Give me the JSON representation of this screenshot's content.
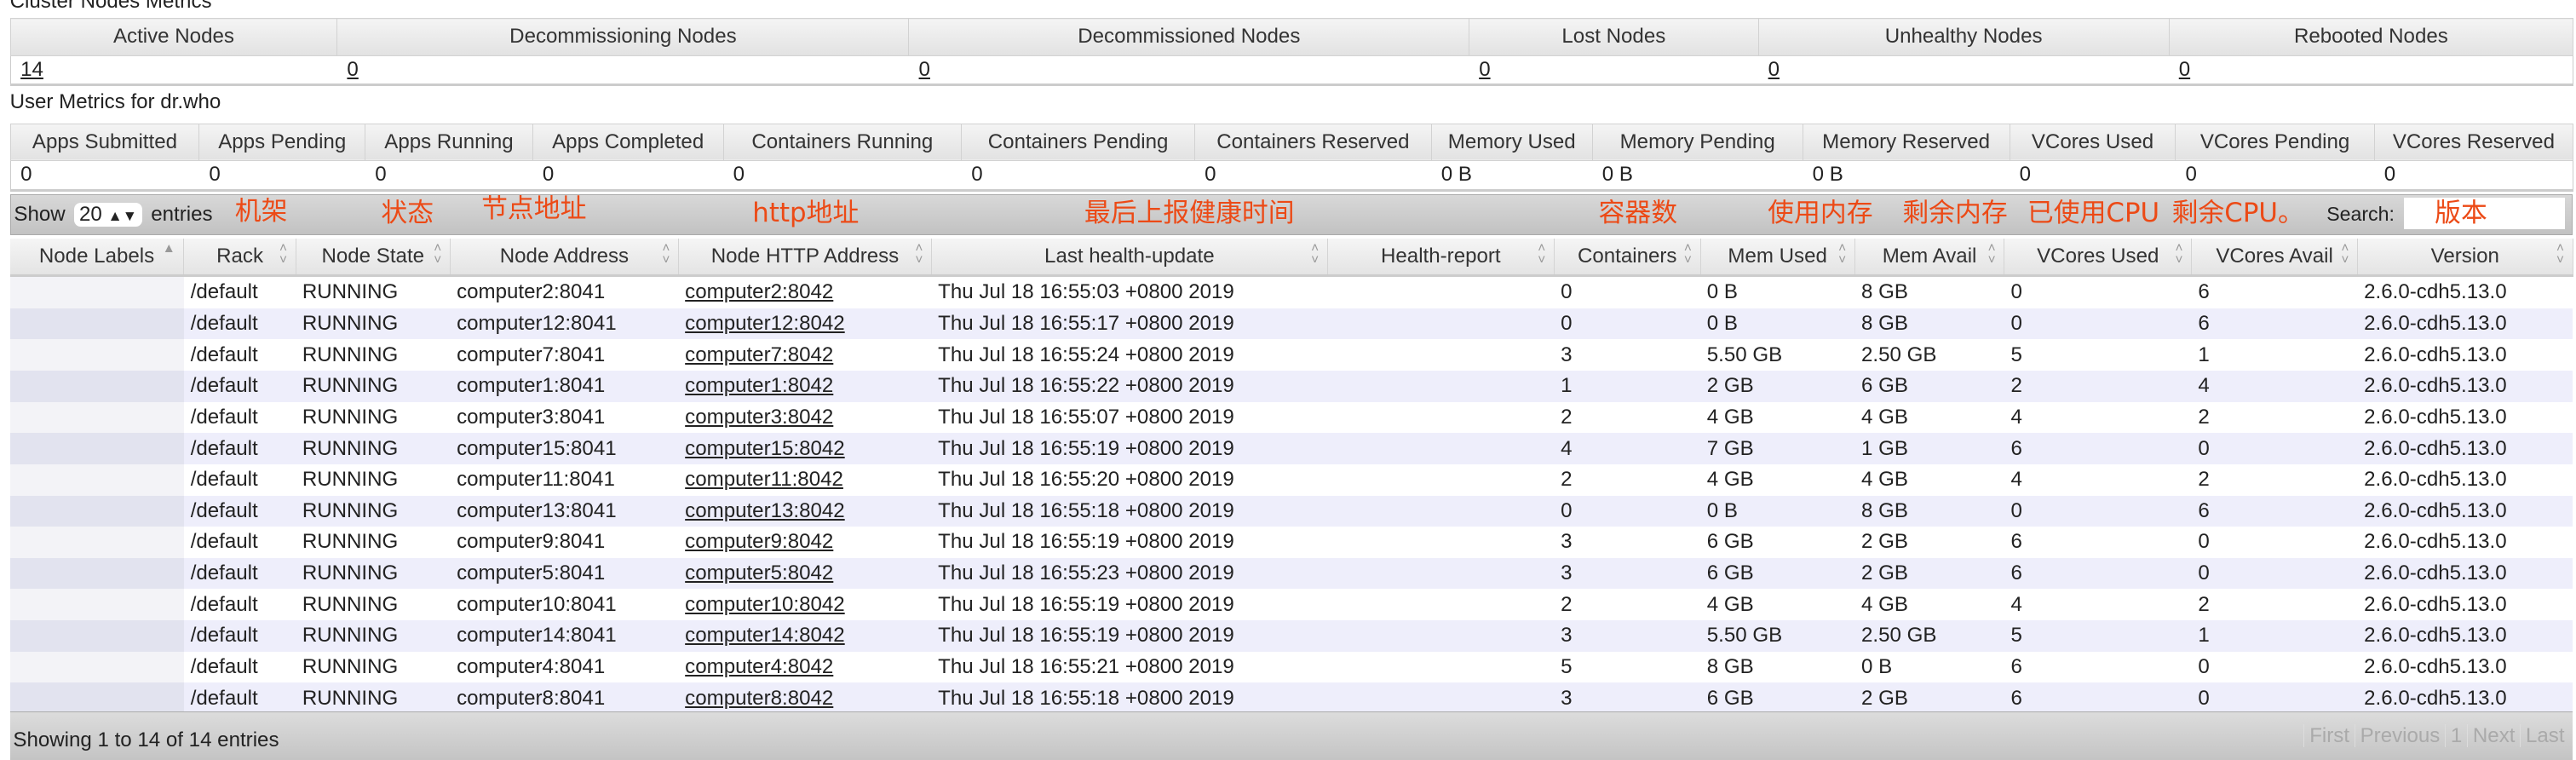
{
  "cluster": {
    "title": "Cluster Nodes Metrics",
    "headers": [
      "Active Nodes",
      "Decommissioning Nodes",
      "Decommissioned Nodes",
      "Lost Nodes",
      "Unhealthy Nodes",
      "Rebooted Nodes"
    ],
    "values": [
      "14",
      "0",
      "0",
      "0",
      "0",
      "0"
    ]
  },
  "user": {
    "title": "User Metrics for dr.who",
    "headers": [
      "Apps Submitted",
      "Apps Pending",
      "Apps Running",
      "Apps Completed",
      "Containers Running",
      "Containers Pending",
      "Containers Reserved",
      "Memory Used",
      "Memory Pending",
      "Memory Reserved",
      "VCores Used",
      "VCores Pending",
      "VCores Reserved"
    ],
    "values": [
      "0",
      "0",
      "0",
      "0",
      "0",
      "0",
      "0",
      "0 B",
      "0 B",
      "0 B",
      "0",
      "0",
      "0"
    ]
  },
  "controls": {
    "show_label": "Show",
    "entries_value": "20",
    "entries_label": "entries",
    "search_label": "Search:",
    "search_value": ""
  },
  "annotations": [
    "机架",
    "状态",
    "节点地址",
    "http地址",
    "最后上报健康时间",
    "容器数",
    "使用内存",
    "剩余内存",
    "已使用CPU",
    "剩余CPU。",
    "版本"
  ],
  "annotation_color": "#ec4a16",
  "nodes": {
    "headers": [
      "Node Labels",
      "Rack",
      "Node State",
      "Node Address",
      "Node HTTP Address",
      "Last health-update",
      "Health-report",
      "Containers",
      "Mem Used",
      "Mem Avail",
      "VCores Used",
      "VCores Avail",
      "Version"
    ],
    "sorted_column": "Node Labels",
    "rows": [
      [
        "",
        "/default",
        "RUNNING",
        "computer2:8041",
        "computer2:8042",
        "Thu Jul 18 16:55:03 +0800 2019",
        "",
        "0",
        "0 B",
        "8 GB",
        "0",
        "6",
        "2.6.0-cdh5.13.0"
      ],
      [
        "",
        "/default",
        "RUNNING",
        "computer12:8041",
        "computer12:8042",
        "Thu Jul 18 16:55:17 +0800 2019",
        "",
        "0",
        "0 B",
        "8 GB",
        "0",
        "6",
        "2.6.0-cdh5.13.0"
      ],
      [
        "",
        "/default",
        "RUNNING",
        "computer7:8041",
        "computer7:8042",
        "Thu Jul 18 16:55:24 +0800 2019",
        "",
        "3",
        "5.50 GB",
        "2.50 GB",
        "5",
        "1",
        "2.6.0-cdh5.13.0"
      ],
      [
        "",
        "/default",
        "RUNNING",
        "computer1:8041",
        "computer1:8042",
        "Thu Jul 18 16:55:22 +0800 2019",
        "",
        "1",
        "2 GB",
        "6 GB",
        "2",
        "4",
        "2.6.0-cdh5.13.0"
      ],
      [
        "",
        "/default",
        "RUNNING",
        "computer3:8041",
        "computer3:8042",
        "Thu Jul 18 16:55:07 +0800 2019",
        "",
        "2",
        "4 GB",
        "4 GB",
        "4",
        "2",
        "2.6.0-cdh5.13.0"
      ],
      [
        "",
        "/default",
        "RUNNING",
        "computer15:8041",
        "computer15:8042",
        "Thu Jul 18 16:55:19 +0800 2019",
        "",
        "4",
        "7 GB",
        "1 GB",
        "6",
        "0",
        "2.6.0-cdh5.13.0"
      ],
      [
        "",
        "/default",
        "RUNNING",
        "computer11:8041",
        "computer11:8042",
        "Thu Jul 18 16:55:20 +0800 2019",
        "",
        "2",
        "4 GB",
        "4 GB",
        "4",
        "2",
        "2.6.0-cdh5.13.0"
      ],
      [
        "",
        "/default",
        "RUNNING",
        "computer13:8041",
        "computer13:8042",
        "Thu Jul 18 16:55:18 +0800 2019",
        "",
        "0",
        "0 B",
        "8 GB",
        "0",
        "6",
        "2.6.0-cdh5.13.0"
      ],
      [
        "",
        "/default",
        "RUNNING",
        "computer9:8041",
        "computer9:8042",
        "Thu Jul 18 16:55:19 +0800 2019",
        "",
        "3",
        "6 GB",
        "2 GB",
        "6",
        "0",
        "2.6.0-cdh5.13.0"
      ],
      [
        "",
        "/default",
        "RUNNING",
        "computer5:8041",
        "computer5:8042",
        "Thu Jul 18 16:55:23 +0800 2019",
        "",
        "3",
        "6 GB",
        "2 GB",
        "6",
        "0",
        "2.6.0-cdh5.13.0"
      ],
      [
        "",
        "/default",
        "RUNNING",
        "computer10:8041",
        "computer10:8042",
        "Thu Jul 18 16:55:19 +0800 2019",
        "",
        "2",
        "4 GB",
        "4 GB",
        "4",
        "2",
        "2.6.0-cdh5.13.0"
      ],
      [
        "",
        "/default",
        "RUNNING",
        "computer14:8041",
        "computer14:8042",
        "Thu Jul 18 16:55:19 +0800 2019",
        "",
        "3",
        "5.50 GB",
        "2.50 GB",
        "5",
        "1",
        "2.6.0-cdh5.13.0"
      ],
      [
        "",
        "/default",
        "RUNNING",
        "computer4:8041",
        "computer4:8042",
        "Thu Jul 18 16:55:21 +0800 2019",
        "",
        "5",
        "8 GB",
        "0 B",
        "6",
        "0",
        "2.6.0-cdh5.13.0"
      ],
      [
        "",
        "/default",
        "RUNNING",
        "computer8:8041",
        "computer8:8042",
        "Thu Jul 18 16:55:18 +0800 2019",
        "",
        "3",
        "6 GB",
        "2 GB",
        "6",
        "0",
        "2.6.0-cdh5.13.0"
      ]
    ]
  },
  "footer": {
    "info": "Showing 1 to 14 of 14 entries",
    "pager": [
      "First",
      "Previous",
      "1",
      "Next",
      "Last"
    ]
  }
}
